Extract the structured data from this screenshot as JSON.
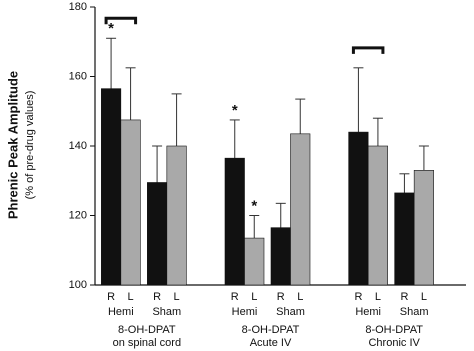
{
  "chart_data": {
    "type": "grouped_bar",
    "y_label": "Phrenic Peak Amplitude",
    "y_sublabel": "(% of pre-drug values)",
    "ylim": [
      100,
      180
    ],
    "yticks": [
      100,
      120,
      140,
      160,
      180
    ],
    "bar_colors": [
      "#111111",
      "#a9a9a9"
    ],
    "groups": [
      {
        "label": [
          "8-OH-DPAT",
          "on spinal cord"
        ],
        "subgroups": [
          {
            "label": "Hemi",
            "bracket": true,
            "bars": [
              {
                "label": "R",
                "value": 156.5,
                "error": 14.5,
                "marker": "*"
              },
              {
                "label": "L",
                "value": 147.5,
                "error": 15
              }
            ]
          },
          {
            "label": "Sham",
            "bars": [
              {
                "label": "R",
                "value": 129.5,
                "error": 10.5
              },
              {
                "label": "L",
                "value": 140,
                "error": 15
              }
            ]
          }
        ]
      },
      {
        "label": [
          "8-OH-DPAT",
          "Acute IV"
        ],
        "subgroups": [
          {
            "label": "Hemi",
            "bars": [
              {
                "label": "R",
                "value": 136.5,
                "error": 11,
                "marker": "*"
              },
              {
                "label": "L",
                "value": 113.5,
                "error": 6.5,
                "marker": "*"
              }
            ]
          },
          {
            "label": "Sham",
            "bars": [
              {
                "label": "R",
                "value": 116.5,
                "error": 7
              },
              {
                "label": "L",
                "value": 143.5,
                "error": 10
              }
            ]
          }
        ]
      },
      {
        "label": [
          "8-OH-DPAT",
          "Chronic IV"
        ],
        "subgroups": [
          {
            "label": "Hemi",
            "bracket": true,
            "bars": [
              {
                "label": "R",
                "value": 144,
                "error": 18.5
              },
              {
                "label": "L",
                "value": 140,
                "error": 8
              }
            ]
          },
          {
            "label": "Sham",
            "bars": [
              {
                "label": "R",
                "value": 126.5,
                "error": 5.5
              },
              {
                "label": "L",
                "value": 133,
                "error": 7
              }
            ]
          }
        ]
      }
    ]
  }
}
